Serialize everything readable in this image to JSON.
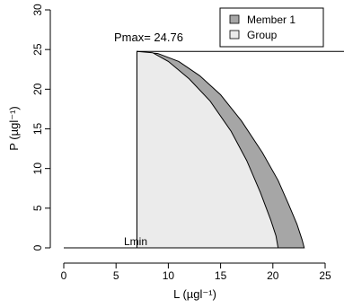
{
  "chart_data": {
    "type": "area",
    "xlabel": "L (µgl⁻¹)",
    "ylabel": "P (µgl⁻¹)",
    "xlim": [
      0,
      25
    ],
    "ylim": [
      0,
      30
    ],
    "x_ticks": [
      0,
      5,
      10,
      15,
      20,
      25
    ],
    "y_ticks": [
      0,
      5,
      10,
      15,
      20,
      25,
      30
    ],
    "grid": false,
    "legend_position": "top-right",
    "series": [
      {
        "name": "Member 1",
        "color": "#a6a6a6",
        "x": [
          7.0,
          9.0,
          11.0,
          13.0,
          15.0,
          17.0,
          19.0,
          20.5,
          21.5,
          22.3,
          22.8,
          23.0
        ],
        "y": [
          24.76,
          24.5,
          23.5,
          21.7,
          19.3,
          16.0,
          12.0,
          8.5,
          5.5,
          3.0,
          1.0,
          0.0
        ]
      },
      {
        "name": "Group",
        "color": "#ebebeb",
        "x": [
          7.0,
          8.5,
          10.0,
          12.0,
          14.0,
          16.0,
          17.5,
          18.8,
          19.8,
          20.3,
          20.5
        ],
        "y": [
          24.76,
          24.6,
          23.5,
          21.3,
          18.5,
          14.7,
          11.0,
          7.0,
          3.5,
          1.5,
          0.0
        ]
      }
    ],
    "annotations": {
      "pmax_label": "Pmax= 24.76",
      "pmax_value": 24.76,
      "lmin_label": "Lmin",
      "lmin_value": 7.0
    }
  }
}
